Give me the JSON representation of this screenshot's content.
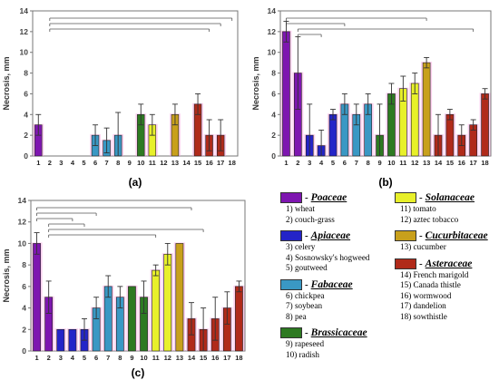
{
  "chart_data": [
    {
      "panel": "(a)",
      "type": "bar",
      "ylabel": "Necrosis, mm",
      "ylim": [
        0,
        14
      ],
      "yticks": [
        0,
        2,
        4,
        6,
        8,
        10,
        12,
        14
      ],
      "categories": [
        "1",
        "2",
        "3",
        "4",
        "5",
        "6",
        "7",
        "8",
        "9",
        "10",
        "11",
        "12",
        "13",
        "14",
        "15",
        "16",
        "17",
        "18"
      ],
      "values": [
        3,
        0,
        0,
        0,
        0,
        2,
        1.5,
        2,
        0,
        4,
        3,
        0,
        4,
        0,
        5,
        2,
        2,
        0
      ],
      "errors": [
        1,
        0,
        0,
        0,
        0,
        1,
        1.2,
        2.2,
        0,
        1,
        1,
        0,
        1,
        0,
        1,
        1.5,
        1.5,
        0
      ]
    },
    {
      "panel": "(b)",
      "type": "bar",
      "ylabel": "Necrosis, mm",
      "ylim": [
        0,
        14
      ],
      "yticks": [
        0,
        2,
        4,
        6,
        8,
        10,
        12,
        14
      ],
      "categories": [
        "1",
        "2",
        "3",
        "4",
        "5",
        "6",
        "7",
        "8",
        "9",
        "10",
        "11",
        "12",
        "13",
        "14",
        "15",
        "16",
        "17",
        "18"
      ],
      "values": [
        12,
        8,
        2,
        1,
        4,
        5,
        4,
        5,
        2,
        6,
        6.5,
        7,
        9,
        2,
        4,
        2,
        3,
        6
      ],
      "errors": [
        1,
        3.5,
        3,
        1.5,
        0.5,
        1,
        1,
        1,
        3,
        1,
        1.2,
        1,
        0.5,
        2,
        0.5,
        1,
        0.5,
        0.5
      ]
    },
    {
      "panel": "(c)",
      "type": "bar",
      "ylabel": "Necrosis, mm",
      "ylim": [
        0,
        14
      ],
      "yticks": [
        0,
        2,
        4,
        6,
        8,
        10,
        12,
        14
      ],
      "categories": [
        "1",
        "2",
        "3",
        "4",
        "5",
        "6",
        "7",
        "8",
        "9",
        "10",
        "11",
        "12",
        "13",
        "14",
        "15",
        "16",
        "17",
        "18"
      ],
      "values": [
        10,
        5,
        2,
        2,
        2,
        4,
        6,
        5,
        6,
        5,
        7.5,
        9,
        10,
        3,
        2,
        3,
        4,
        6
      ],
      "errors": [
        1,
        1.5,
        0,
        0,
        1,
        1,
        1,
        1,
        0,
        1.5,
        0.5,
        1,
        0,
        1.5,
        2,
        2,
        1.5,
        0.5
      ]
    }
  ],
  "legend": {
    "groups": [
      {
        "family": "Poaceae",
        "color": "#7e16b0",
        "species": [
          "1) wheat",
          "2) couch-grass"
        ]
      },
      {
        "family": "Apiaceae",
        "color": "#2424c8",
        "species": [
          "3) celery",
          "4) Sosnowsky's hogweed",
          "5) goutweed"
        ]
      },
      {
        "family": "Fabaceae",
        "color": "#3a98c4",
        "species": [
          "6) chickpea",
          "7) soybean",
          "8) pea"
        ]
      },
      {
        "family": "Brassicaceae",
        "color": "#2e7a22",
        "species": [
          "9) rapeseed",
          "10) radish"
        ]
      },
      {
        "family": "Solanaceae",
        "color": "#e8f02a",
        "species": [
          "11) tomato",
          "12) aztec tobacco"
        ]
      },
      {
        "family": "Cucurbitaceae",
        "color": "#c8a01c",
        "species": [
          "13) cucumber"
        ]
      },
      {
        "family": "Asteraceae",
        "color": "#b02a1a",
        "species": [
          "14) French marigold",
          "15) Canada thistle",
          "16) wormwood",
          "17) dandelion",
          "18) sowthistle"
        ]
      }
    ]
  },
  "colors": {
    "bar_colors": [
      "#7e16b0",
      "#7e16b0",
      "#2424c8",
      "#2424c8",
      "#2424c8",
      "#3a98c4",
      "#3a98c4",
      "#3a98c4",
      "#2e7a22",
      "#2e7a22",
      "#e8f02a",
      "#e8f02a",
      "#c8a01c",
      "#b02a1a",
      "#b02a1a",
      "#b02a1a",
      "#b02a1a",
      "#b02a1a"
    ],
    "pink_halo": "#f7a8e0"
  }
}
